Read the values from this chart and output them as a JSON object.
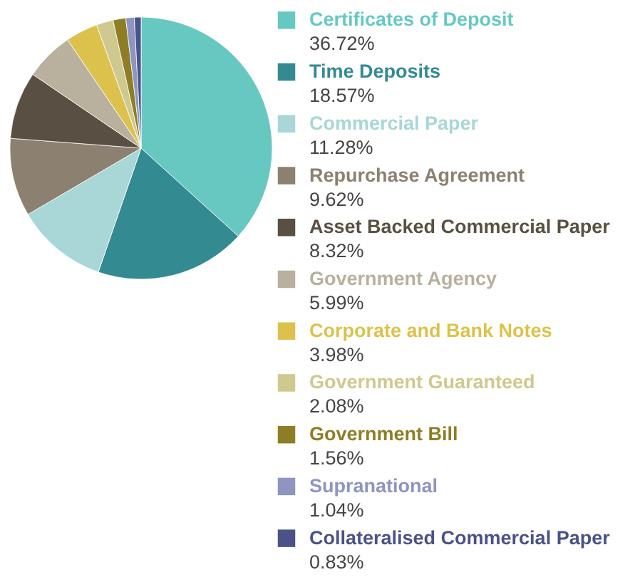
{
  "chart_data": {
    "type": "pie",
    "legend": "right",
    "categories": [
      "Certificates of Deposit",
      "Time Deposits",
      "Commercial Paper",
      "Repurchase Agreement",
      "Asset Backed Commercial Paper",
      "Government Agency",
      "Corporate and Bank Notes",
      "Government Guaranteed",
      "Government Bill",
      "Supranational",
      "Collateralised Commercial Paper"
    ],
    "values": [
      36.72,
      18.57,
      11.28,
      9.62,
      8.32,
      5.99,
      3.98,
      2.08,
      1.56,
      1.04,
      0.83
    ],
    "value_labels": [
      "36.72%",
      "18.57%",
      "11.28%",
      "9.62%",
      "8.32%",
      "5.99%",
      "3.98%",
      "2.08%",
      "1.56%",
      "1.04%",
      "0.83%"
    ],
    "colors": [
      "#67c8c2",
      "#338a91",
      "#a9d6d6",
      "#8c8070",
      "#5a4f43",
      "#b9b09d",
      "#dcc24c",
      "#cfc98f",
      "#8d7e26",
      "#8e95c0",
      "#4b5287"
    ]
  }
}
